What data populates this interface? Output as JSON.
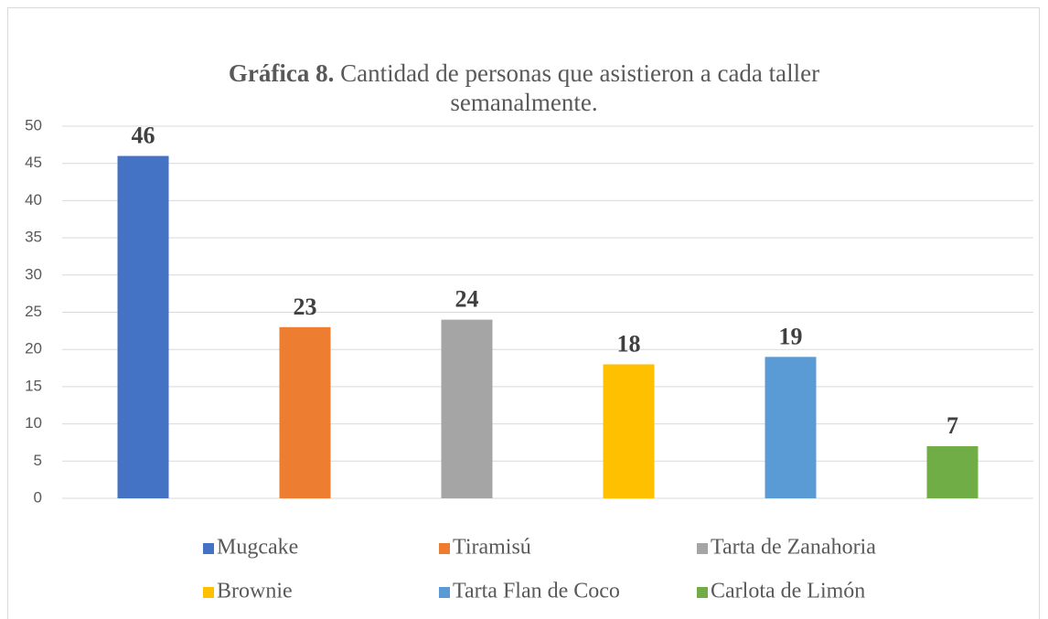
{
  "chart_data": {
    "type": "bar",
    "title_prefix": "Gráfica 8.",
    "title": "Cantidad de personas que asistieron a cada taller semanalmente.",
    "categories": [
      null
    ],
    "series": [
      {
        "name": "Mugcake",
        "color": "#4472c4",
        "values": [
          46
        ]
      },
      {
        "name": "Tiramisú",
        "color": "#ed7d31",
        "values": [
          23
        ]
      },
      {
        "name": "Tarta de Zanahoria",
        "color": "#a5a5a5",
        "values": [
          24
        ]
      },
      {
        "name": "Brownie",
        "color": "#ffc000",
        "values": [
          18
        ]
      },
      {
        "name": "Tarta Flan de Coco",
        "color": "#5b9bd5",
        "values": [
          19
        ]
      },
      {
        "name": "Carlota de Limón",
        "color": "#70ad47",
        "values": [
          7
        ]
      }
    ],
    "ylim": [
      0,
      50
    ],
    "yticks": [
      0,
      5,
      10,
      15,
      20,
      25,
      30,
      35,
      40,
      45,
      50
    ],
    "grid": true,
    "legend": "bottom"
  }
}
